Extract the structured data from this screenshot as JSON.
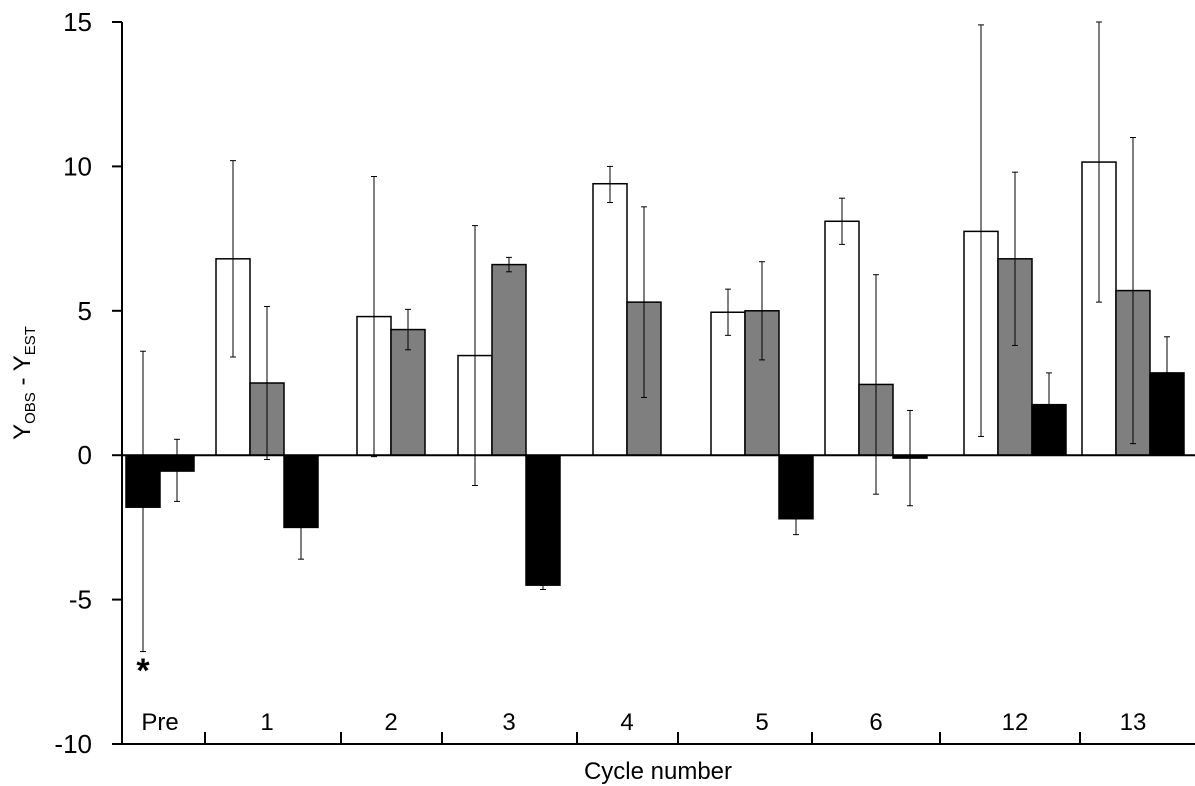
{
  "chart_data": {
    "type": "bar",
    "title": "",
    "xlabel": "Cycle number",
    "ylabel": {
      "main": "Y",
      "sub1": "OBS",
      "mid": " - Y",
      "sub2": "EST"
    },
    "ylim": [
      -10,
      15
    ],
    "yticks": [
      15,
      10,
      5,
      0,
      -5,
      -10
    ],
    "ytick_labels": [
      "15",
      "10",
      "5",
      "0",
      "-5",
      "-10"
    ],
    "grid": false,
    "legend": null,
    "categories": [
      "Pre",
      "1",
      "2",
      "3",
      "4",
      "5",
      "6",
      "12",
      "13"
    ],
    "groups": [
      {
        "category": "Pre",
        "bars": [
          {
            "fill": "#000000",
            "value": -1.8,
            "err_low": -6.8,
            "err_high": 3.6
          },
          {
            "fill": "#000000",
            "value": -0.55,
            "err_low": -1.6,
            "err_high": 0.55
          }
        ]
      },
      {
        "category": "1",
        "bars": [
          {
            "fill": "#ffffff",
            "value": 6.8,
            "err_low": 3.4,
            "err_high": 10.2
          },
          {
            "fill": "#7f7f7f",
            "value": 2.5,
            "err_low": -0.15,
            "err_high": 5.15
          },
          {
            "fill": "#000000",
            "value": -2.5,
            "err_low": -3.6,
            "err_high": -2.5
          }
        ]
      },
      {
        "category": "2",
        "bars": [
          {
            "fill": "#ffffff",
            "value": 4.8,
            "err_low": -0.05,
            "err_high": 9.65
          },
          {
            "fill": "#7f7f7f",
            "value": 4.35,
            "err_low": 3.65,
            "err_high": 5.05
          }
        ]
      },
      {
        "category": "3",
        "bars": [
          {
            "fill": "#ffffff",
            "value": 3.45,
            "err_low": -1.05,
            "err_high": 7.95
          },
          {
            "fill": "#7f7f7f",
            "value": 6.6,
            "err_low": 6.35,
            "err_high": 6.85
          },
          {
            "fill": "#000000",
            "value": -4.5,
            "err_low": -4.65,
            "err_high": -4.5
          }
        ]
      },
      {
        "category": "4",
        "bars": [
          {
            "fill": "#ffffff",
            "value": 9.4,
            "err_low": 8.75,
            "err_high": 10.0
          },
          {
            "fill": "#7f7f7f",
            "value": 5.3,
            "err_low": 2.0,
            "err_high": 8.6
          }
        ]
      },
      {
        "category": "5",
        "bars": [
          {
            "fill": "#ffffff",
            "value": 4.95,
            "err_low": 4.15,
            "err_high": 5.75
          },
          {
            "fill": "#7f7f7f",
            "value": 5.0,
            "err_low": 3.3,
            "err_high": 6.7
          },
          {
            "fill": "#000000",
            "value": -2.2,
            "err_low": -2.75,
            "err_high": -2.2
          }
        ]
      },
      {
        "category": "6",
        "bars": [
          {
            "fill": "#ffffff",
            "value": 8.1,
            "err_low": 7.3,
            "err_high": 8.9
          },
          {
            "fill": "#7f7f7f",
            "value": 2.45,
            "err_low": -1.35,
            "err_high": 6.25
          },
          {
            "fill": "#000000",
            "value": -0.1,
            "err_low": -1.75,
            "err_high": 1.55
          }
        ]
      },
      {
        "category": "12",
        "bars": [
          {
            "fill": "#ffffff",
            "value": 7.75,
            "err_low": 0.65,
            "err_high": 14.9
          },
          {
            "fill": "#7f7f7f",
            "value": 6.8,
            "err_low": 3.8,
            "err_high": 9.8
          },
          {
            "fill": "#000000",
            "value": 1.75,
            "err_low": 1.75,
            "err_high": 2.85
          }
        ]
      },
      {
        "category": "13",
        "bars": [
          {
            "fill": "#ffffff",
            "value": 10.15,
            "err_low": 5.3,
            "err_high": 15.0
          },
          {
            "fill": "#7f7f7f",
            "value": 5.7,
            "err_low": 0.4,
            "err_high": 11.0
          },
          {
            "fill": "#000000",
            "value": 2.85,
            "err_low": 2.85,
            "err_high": 4.1
          }
        ]
      }
    ],
    "annotations": [
      {
        "text": "*",
        "category": "Pre",
        "y": -7.1
      }
    ]
  }
}
